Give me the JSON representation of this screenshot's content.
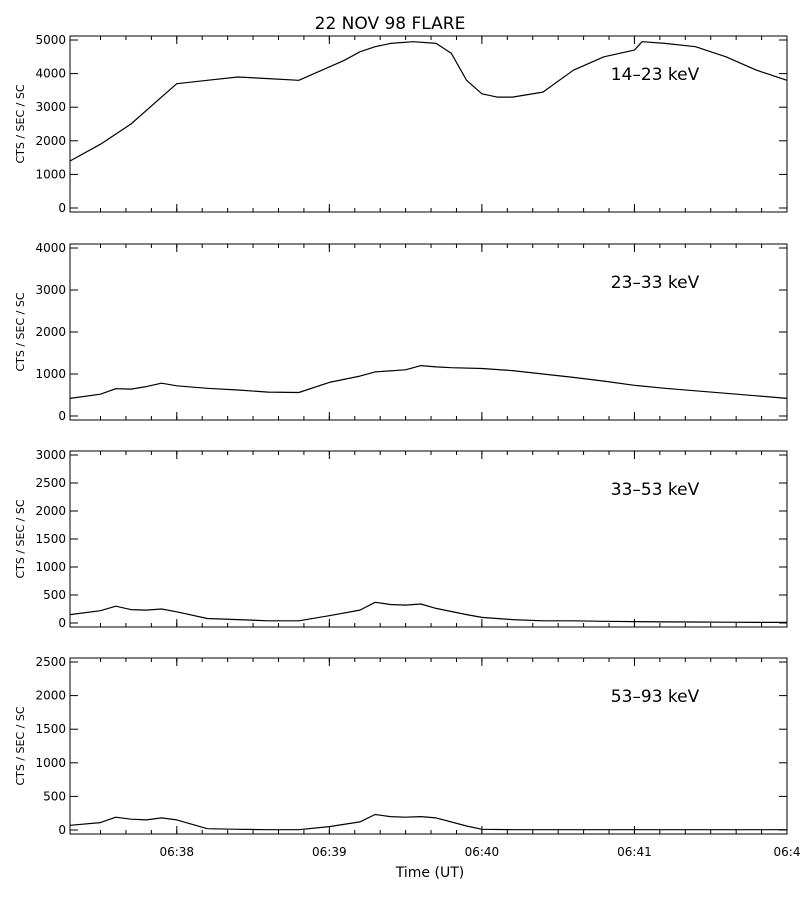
{
  "chart_data": {
    "type": "line",
    "title": "22 NOV 98 FLARE",
    "xlabel": "Time (UT)",
    "x_tick_labels": [
      "06:38",
      "06:39",
      "06:40",
      "06:41",
      "06:4"
    ],
    "x_tick_values_min": [
      38,
      39,
      40,
      41,
      42
    ],
    "xlim_min": [
      37.3,
      42.0
    ],
    "panels": [
      {
        "name": "14-23 keV",
        "label": "14–23 keV",
        "ylabel": "CTS / SEC / SC",
        "ylim": [
          0,
          5000
        ],
        "y_ticks": [
          0,
          1000,
          2000,
          3000,
          4000,
          5000
        ],
        "x": [
          37.3,
          37.5,
          37.7,
          37.9,
          38.0,
          38.2,
          38.4,
          38.6,
          38.8,
          39.0,
          39.1,
          39.2,
          39.3,
          39.4,
          39.55,
          39.7,
          39.8,
          39.85,
          39.9,
          40.0,
          40.1,
          40.2,
          40.4,
          40.6,
          40.8,
          41.0,
          41.05,
          41.2,
          41.4,
          41.6,
          41.8,
          42.0
        ],
        "y": [
          1400,
          1900,
          2500,
          3300,
          3700,
          3800,
          3900,
          3850,
          3800,
          4200,
          4400,
          4650,
          4800,
          4900,
          4950,
          4900,
          4600,
          4200,
          3800,
          3400,
          3300,
          3300,
          3450,
          4100,
          4500,
          4700,
          4950,
          4900,
          4800,
          4500,
          4100,
          3800
        ]
      },
      {
        "name": "23-33 keV",
        "label": "23–33 keV",
        "ylabel": "CTS / SEC / SC",
        "ylim": [
          0,
          4000
        ],
        "y_ticks": [
          0,
          1000,
          2000,
          3000,
          4000
        ],
        "x": [
          37.3,
          37.5,
          37.6,
          37.7,
          37.8,
          37.9,
          38.0,
          38.2,
          38.4,
          38.6,
          38.8,
          39.0,
          39.2,
          39.3,
          39.5,
          39.6,
          39.7,
          39.8,
          40.0,
          40.2,
          40.4,
          40.6,
          40.8,
          41.0,
          41.2,
          41.4,
          41.6,
          41.8,
          42.0
        ],
        "y": [
          420,
          520,
          650,
          640,
          700,
          780,
          720,
          660,
          620,
          570,
          560,
          800,
          950,
          1050,
          1100,
          1200,
          1170,
          1150,
          1130,
          1080,
          1000,
          920,
          830,
          730,
          660,
          600,
          540,
          480,
          420
        ]
      },
      {
        "name": "33-53 keV",
        "label": "33–53 keV",
        "ylabel": "CTS / SEC / SC",
        "ylim": [
          0,
          3000
        ],
        "y_ticks": [
          0,
          500,
          1000,
          1500,
          2000,
          2500,
          3000
        ],
        "x": [
          37.3,
          37.5,
          37.6,
          37.7,
          37.8,
          37.9,
          38.0,
          38.2,
          38.4,
          38.6,
          38.8,
          39.0,
          39.2,
          39.3,
          39.4,
          39.5,
          39.6,
          39.7,
          39.9,
          40.0,
          40.2,
          40.4,
          40.6,
          40.8,
          41.0,
          41.2,
          41.4,
          41.6,
          41.8,
          42.0
        ],
        "y": [
          150,
          220,
          300,
          240,
          230,
          250,
          200,
          80,
          60,
          40,
          40,
          130,
          230,
          370,
          330,
          320,
          340,
          260,
          150,
          100,
          60,
          40,
          40,
          30,
          25,
          20,
          18,
          15,
          10,
          10
        ]
      },
      {
        "name": "53-93 keV",
        "label": "53–93 keV",
        "ylabel": "CTS / SEC / SC",
        "ylim": [
          0,
          2500
        ],
        "y_ticks": [
          0,
          500,
          1000,
          1500,
          2000,
          2500
        ],
        "x": [
          37.3,
          37.5,
          37.6,
          37.7,
          37.8,
          37.9,
          38.0,
          38.2,
          38.4,
          38.6,
          38.8,
          39.0,
          39.2,
          39.3,
          39.4,
          39.5,
          39.6,
          39.7,
          39.9,
          40.0,
          40.2,
          40.4,
          40.6,
          40.8,
          41.0,
          41.2,
          41.4,
          41.6,
          41.8,
          42.0
        ],
        "y": [
          70,
          110,
          190,
          160,
          150,
          180,
          150,
          20,
          10,
          5,
          5,
          50,
          120,
          230,
          200,
          190,
          200,
          180,
          60,
          10,
          5,
          5,
          5,
          5,
          5,
          5,
          5,
          5,
          5,
          5
        ]
      }
    ]
  }
}
